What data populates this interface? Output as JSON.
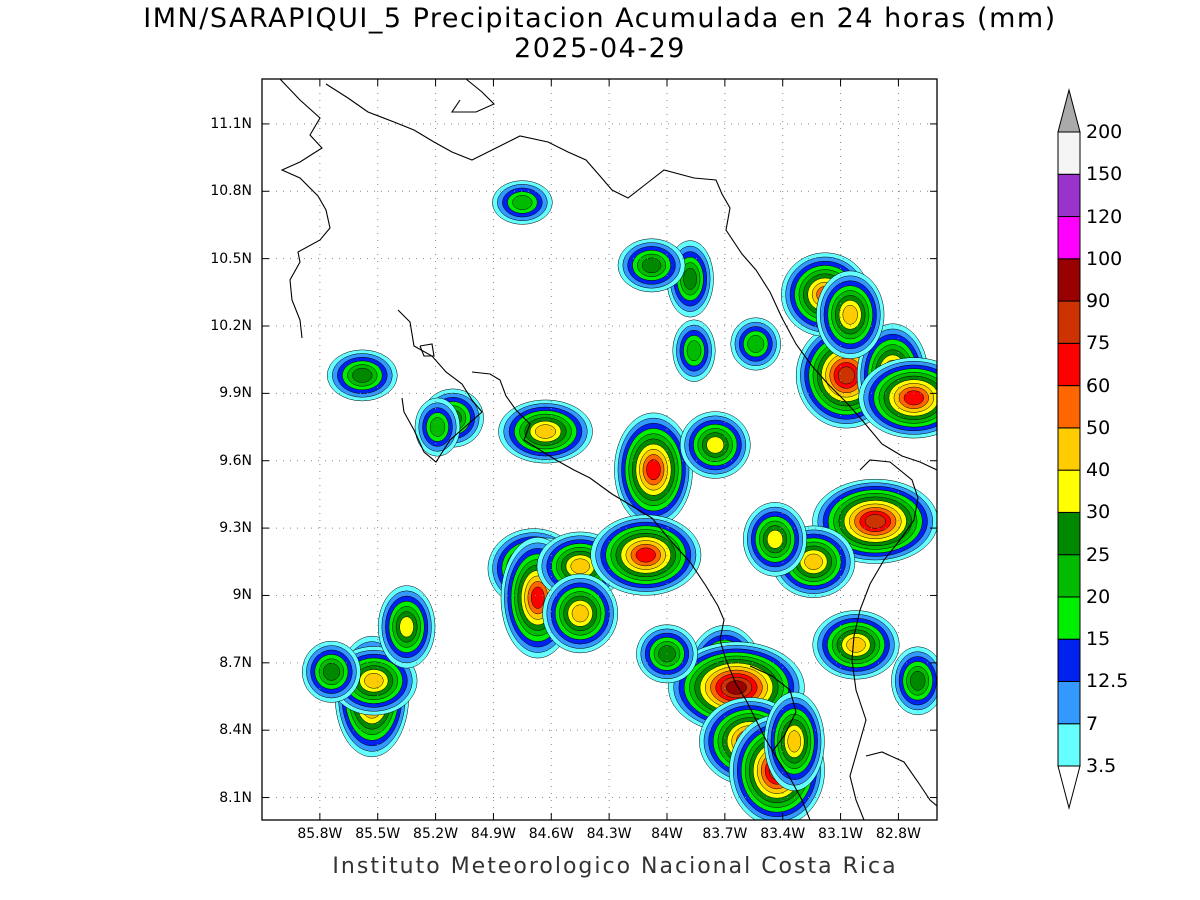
{
  "title": {
    "line1": "IMN/SARAPIQUI_5 Precipitacion Acumulada en 24 horas (mm)",
    "line2": "2025-04-29"
  },
  "footer": "Instituto Meteorologico Nacional Costa Rica",
  "map": {
    "lat_ticks": [
      "11.1N",
      "10.8N",
      "10.5N",
      "10.2N",
      "9.9N",
      "9.6N",
      "9.3N",
      "9N",
      "8.7N",
      "8.4N",
      "8.1N"
    ],
    "lon_ticks": [
      "85.8W",
      "85.5W",
      "85.2W",
      "84.9W",
      "84.6W",
      "84.3W",
      "84W",
      "83.7W",
      "83.4W",
      "83.1W",
      "82.8W"
    ],
    "lat_values": [
      11.1,
      10.8,
      10.5,
      10.2,
      9.9,
      9.6,
      9.3,
      9.0,
      8.7,
      8.4,
      8.1
    ],
    "lon_values": [
      -85.8,
      -85.5,
      -85.2,
      -84.9,
      -84.6,
      -84.3,
      -84.0,
      -83.7,
      -83.4,
      -83.1,
      -82.8
    ],
    "extent": {
      "lon_min": -86.1,
      "lon_max": -82.6,
      "lat_min": 8.0,
      "lat_max": 11.3
    },
    "grid": "dotted",
    "rain_cells": [
      {
        "lon": -85.53,
        "lat": 8.55,
        "value": 60
      },
      {
        "lon": -85.52,
        "lat": 8.62,
        "value": 40
      },
      {
        "lon": -85.74,
        "lat": 8.66,
        "value": 25
      },
      {
        "lon": -85.35,
        "lat": 8.86,
        "value": 30
      },
      {
        "lon": -85.58,
        "lat": 9.98,
        "value": 25
      },
      {
        "lon": -85.11,
        "lat": 9.79,
        "value": 25
      },
      {
        "lon": -85.19,
        "lat": 9.75,
        "value": 20
      },
      {
        "lon": -84.63,
        "lat": 9.73,
        "value": 40
      },
      {
        "lon": -84.69,
        "lat": 9.12,
        "value": 50
      },
      {
        "lon": -84.62,
        "lat": 9.05,
        "value": 50
      },
      {
        "lon": -84.67,
        "lat": 8.99,
        "value": 60
      },
      {
        "lon": -84.45,
        "lat": 9.13,
        "value": 40
      },
      {
        "lon": -84.45,
        "lat": 8.92,
        "value": 40
      },
      {
        "lon": -84.07,
        "lat": 9.56,
        "value": 60
      },
      {
        "lon": -84.11,
        "lat": 9.18,
        "value": 60
      },
      {
        "lon": -83.75,
        "lat": 9.67,
        "value": 30
      },
      {
        "lon": -83.7,
        "lat": 8.65,
        "value": 50
      },
      {
        "lon": -83.64,
        "lat": 8.59,
        "value": 90
      },
      {
        "lon": -83.57,
        "lat": 8.35,
        "value": 60
      },
      {
        "lon": -83.43,
        "lat": 8.22,
        "value": 75
      },
      {
        "lon": -83.34,
        "lat": 8.35,
        "value": 40
      },
      {
        "lon": -83.02,
        "lat": 8.78,
        "value": 40
      },
      {
        "lon": -83.07,
        "lat": 9.98,
        "value": 75
      },
      {
        "lon": -82.83,
        "lat": 9.98,
        "value": 50
      },
      {
        "lon": -82.72,
        "lat": 9.88,
        "value": 60
      },
      {
        "lon": -83.18,
        "lat": 10.34,
        "value": 50
      },
      {
        "lon": -83.05,
        "lat": 10.25,
        "value": 40
      },
      {
        "lon": -82.92,
        "lat": 9.33,
        "value": 75
      },
      {
        "lon": -83.24,
        "lat": 9.15,
        "value": 40
      },
      {
        "lon": -83.44,
        "lat": 9.25,
        "value": 30
      },
      {
        "lon": -83.88,
        "lat": 10.41,
        "value": 25
      },
      {
        "lon": -84.08,
        "lat": 10.47,
        "value": 25
      },
      {
        "lon": -83.54,
        "lat": 10.12,
        "value": 20
      },
      {
        "lon": -83.86,
        "lat": 10.09,
        "value": 20
      },
      {
        "lon": -84.75,
        "lat": 10.75,
        "value": 20
      },
      {
        "lon": -84.0,
        "lat": 8.74,
        "value": 25
      },
      {
        "lon": -82.7,
        "lat": 8.62,
        "value": 25
      }
    ]
  },
  "colorbar": {
    "levels": [
      "3.5",
      "7",
      "12.5",
      "15",
      "20",
      "25",
      "30",
      "40",
      "50",
      "60",
      "75",
      "90",
      "100",
      "120",
      "150",
      "200"
    ],
    "colors": [
      "#66ffff",
      "#3399ff",
      "#0022ee",
      "#00ee00",
      "#00bb00",
      "#008800",
      "#ffff00",
      "#ffcc00",
      "#ff6600",
      "#ff0000",
      "#cc3300",
      "#990000",
      "#ff00ff",
      "#9933cc",
      "#f5f5f5",
      "#aaaaaa"
    ]
  }
}
